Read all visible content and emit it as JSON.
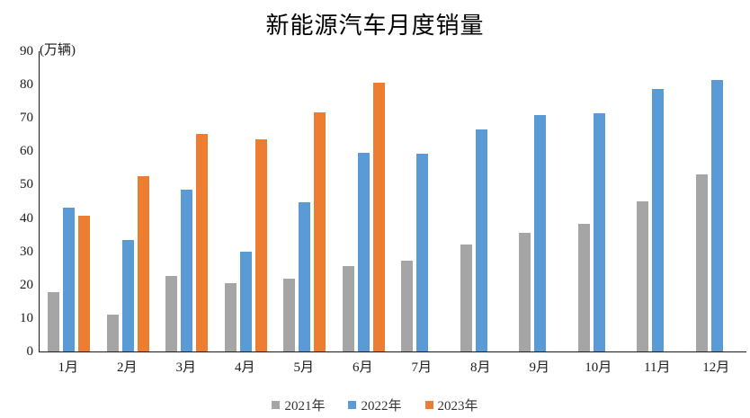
{
  "chart_data": {
    "type": "bar",
    "title": "新能源汽车月度销量",
    "unit_label": "(万辆)",
    "categories": [
      "1月",
      "2月",
      "3月",
      "4月",
      "5月",
      "6月",
      "7月",
      "8月",
      "9月",
      "10月",
      "11月",
      "12月"
    ],
    "series": [
      {
        "name": "2021年",
        "color": "#A5A5A5",
        "values": [
          17.9,
          11.0,
          22.6,
          20.6,
          21.7,
          25.6,
          27.1,
          32.1,
          35.7,
          38.3,
          45.0,
          53.1
        ]
      },
      {
        "name": "2022年",
        "color": "#5B9BD5",
        "values": [
          43.1,
          33.4,
          48.4,
          29.9,
          44.7,
          59.6,
          59.3,
          66.6,
          70.8,
          71.4,
          78.6,
          81.4
        ]
      },
      {
        "name": "2023年",
        "color": "#ED7D31",
        "values": [
          40.8,
          52.5,
          65.3,
          63.6,
          71.7,
          80.6,
          null,
          null,
          null,
          null,
          null,
          null
        ]
      }
    ],
    "ylim": [
      0,
      90
    ],
    "yticks": [
      0,
      10,
      20,
      30,
      40,
      50,
      60,
      70,
      80,
      90
    ],
    "grid": false,
    "legend_position": "bottom",
    "axis_color": "#1a1a1a"
  }
}
